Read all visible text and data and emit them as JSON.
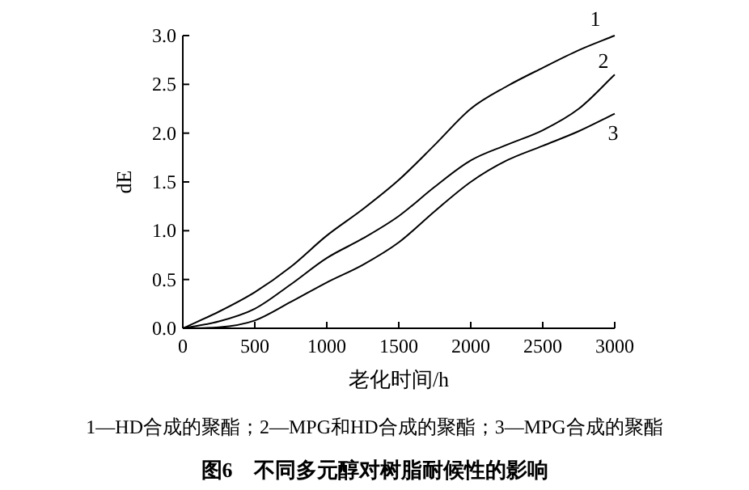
{
  "chart_data": {
    "type": "line",
    "title": "图6　不同多元醇对树脂耐候性的影响",
    "xlabel": "老化时间/h",
    "ylabel": "dE",
    "annotations": [
      "1—HD合成的聚酯；2—MPG和HD合成的聚酯；3—MPG合成的聚酯"
    ],
    "x": [
      0,
      250,
      500,
      750,
      1000,
      1250,
      1500,
      1750,
      2000,
      2250,
      2500,
      2750,
      3000
    ],
    "xlim": [
      0,
      3000
    ],
    "xticks": [
      0,
      500,
      1000,
      1500,
      2000,
      2500,
      3000
    ],
    "ylim": [
      0,
      3
    ],
    "yticks": [
      {
        "value": 0,
        "label": "0.0"
      },
      {
        "value": 0.5,
        "label": "0.5"
      },
      {
        "value": 1,
        "label": "1.0"
      },
      {
        "value": 1.5,
        "label": "1.5"
      },
      {
        "value": 2,
        "label": "2.0"
      },
      {
        "value": 2.5,
        "label": "2.5"
      },
      {
        "value": 3,
        "label": "3.0"
      }
    ],
    "series": [
      {
        "name": "1",
        "color": "#000000",
        "values": [
          0,
          0.17,
          0.37,
          0.63,
          0.95,
          1.22,
          1.52,
          1.88,
          2.25,
          2.48,
          2.67,
          2.85,
          3.0
        ]
      },
      {
        "name": "2",
        "color": "#000000",
        "values": [
          0,
          0.07,
          0.2,
          0.45,
          0.72,
          0.92,
          1.15,
          1.45,
          1.72,
          1.88,
          2.03,
          2.25,
          2.6
        ]
      },
      {
        "name": "3",
        "color": "#000000",
        "values": [
          0,
          0.01,
          0.08,
          0.27,
          0.47,
          0.65,
          0.88,
          1.2,
          1.5,
          1.72,
          1.87,
          2.02,
          2.2
        ]
      }
    ]
  }
}
